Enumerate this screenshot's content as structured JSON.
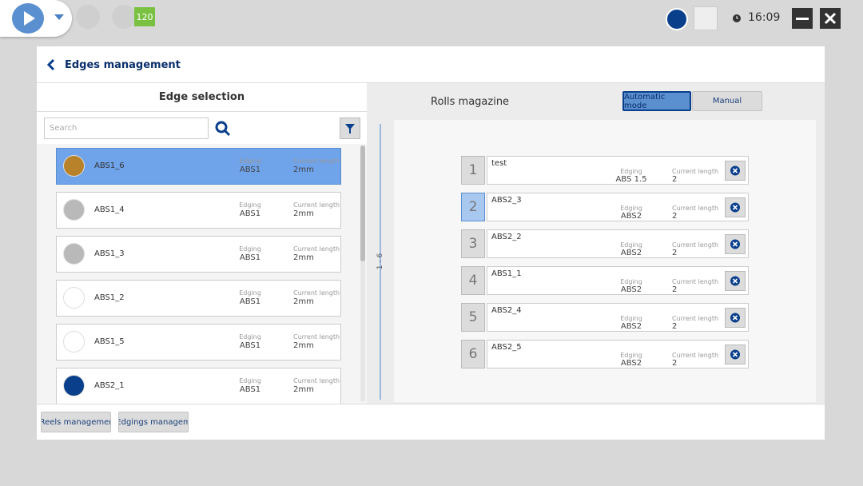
{
  "top_bar": {
    "badge": "120",
    "time": "16:09"
  },
  "header": {
    "title": "Edges management"
  },
  "edge_selection": {
    "title": "Edge selection",
    "search_placeholder": "Search",
    "items": [
      {
        "name": "ABS1_6",
        "edging_label": "Edging",
        "edging": "ABS1",
        "length_label": "Current length",
        "length": "2mm",
        "color": "#b8822a",
        "selected": true
      },
      {
        "name": "ABS1_4",
        "edging_label": "Edging",
        "edging": "ABS1",
        "length_label": "Current length",
        "length": "2mm",
        "color": "#b9b9b9"
      },
      {
        "name": "ABS1_3",
        "edging_label": "Edging",
        "edging": "ABS1",
        "length_label": "Current length",
        "length": "2mm",
        "color": "#b9b9b9"
      },
      {
        "name": "ABS1_2",
        "edging_label": "Edging",
        "edging": "ABS1",
        "length_label": "Current length",
        "length": "2mm",
        "color": "#ffffff"
      },
      {
        "name": "ABS1_5",
        "edging_label": "Edging",
        "edging": "ABS1",
        "length_label": "Current length",
        "length": "2mm",
        "color": "#ffffff"
      },
      {
        "name": "ABS2_1",
        "edging_label": "Edging",
        "edging": "ABS1",
        "length_label": "Current length",
        "length": "2mm",
        "color": "#0a3f8c"
      }
    ]
  },
  "rolls_magazine": {
    "title": "Rolls magazine",
    "modes": [
      "Automatic mode",
      "Manual"
    ],
    "range": "1 - 6",
    "rolls": [
      {
        "number": 1,
        "name": "test",
        "edging_label": "Edging",
        "edging": "ABS 1.5",
        "length_label": "Current length",
        "length": 2
      },
      {
        "number": 2,
        "name": "ABS2_3",
        "edging_label": "Edging",
        "edging": "ABS2",
        "length_label": "Current length",
        "length": 2,
        "active": true
      },
      {
        "number": 3,
        "name": "ABS2_2",
        "edging_label": "Edging",
        "edging": "ABS2",
        "length_label": "Current length",
        "length": 2
      },
      {
        "number": 4,
        "name": "ABS1_1",
        "edging_label": "Edging",
        "edging": "ABS2",
        "length_label": "Current length",
        "length": 2
      },
      {
        "number": 5,
        "name": "ABS2_4",
        "edging_label": "Edging",
        "edging": "ABS2",
        "length_label": "Current length",
        "length": 2
      },
      {
        "number": 6,
        "name": "ABS2_5",
        "edging_label": "Edging",
        "edging": "ABS2",
        "length_label": "Current length",
        "length": 2
      }
    ]
  },
  "footer": {
    "buttons": [
      "Reels managemer",
      "Edgings managem"
    ]
  }
}
